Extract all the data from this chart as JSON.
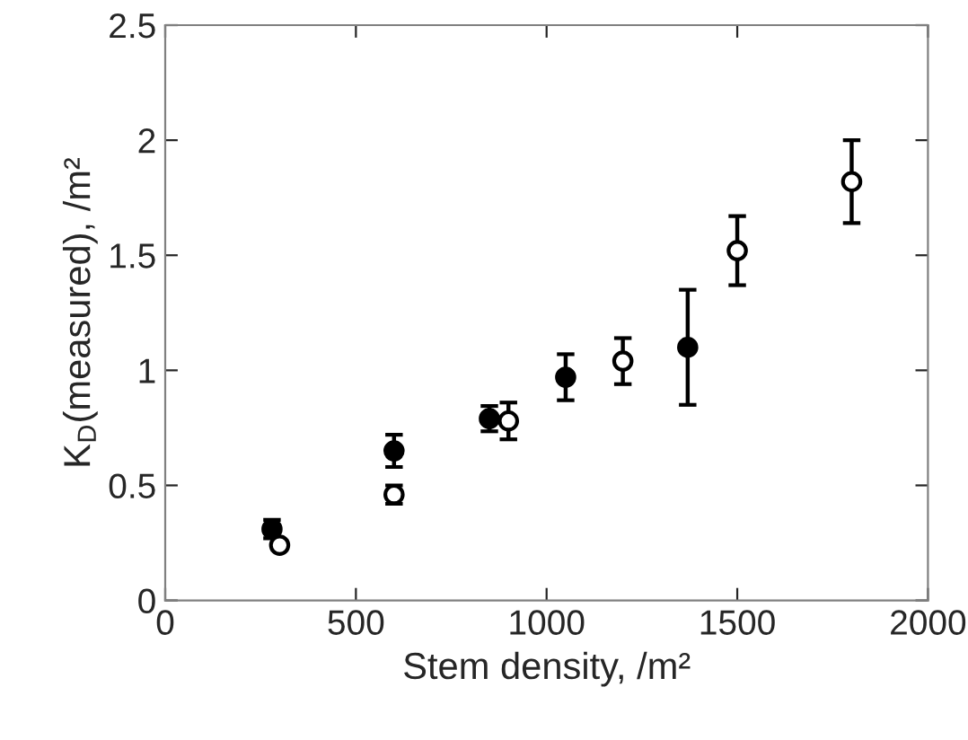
{
  "chart_data": {
    "type": "scatter",
    "xlabel": "Stem density, /m²",
    "ylabel": "K$_{D}$(measured), /m²",
    "xlim": [
      0,
      2000
    ],
    "xticks": [
      0,
      500,
      1000,
      1500,
      2000
    ],
    "ylim": [
      0,
      2.5
    ],
    "yticks": [
      0,
      {
        "value": 0.5,
        "label": "0.5"
      },
      1,
      {
        "value": 1.5,
        "label": "1.5"
      },
      2,
      {
        "value": 2.5,
        "label": "2.5"
      }
    ],
    "grid": false,
    "legend": false,
    "marker": "circle",
    "series": [
      {
        "color": "#000000",
        "x": [
          280,
          600,
          850,
          1050,
          1370
        ],
        "values": [
          0.31,
          0.65,
          0.79,
          0.97,
          1.1
        ],
        "errors": [
          0.04,
          0.07,
          0.055,
          0.1,
          0.25
        ]
      },
      {
        "color": "#000000",
        "x": [
          300,
          600,
          900,
          1200,
          1500,
          1800
        ],
        "values": [
          0.24,
          0.46,
          0.78,
          1.04,
          1.52,
          1.82
        ],
        "errors": [
          0.02,
          0.04,
          0.08,
          0.1,
          0.15,
          0.18
        ]
      }
    ]
  }
}
